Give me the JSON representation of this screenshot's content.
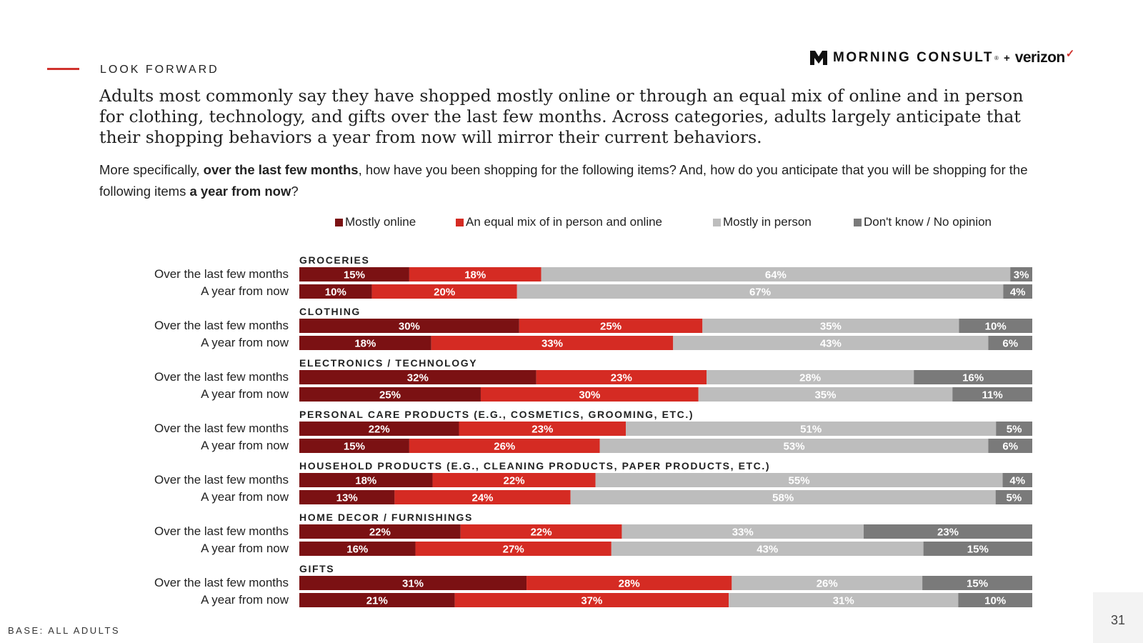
{
  "slide": {
    "section_label": "LOOK FORWARD",
    "brand": "MORNING CONSULT",
    "brand_reg": "®",
    "plus": "+",
    "partner": "verizon",
    "partner_check": "✓",
    "headline": "Adults most commonly say they have shopped mostly online or through an equal mix of online and in person for clothing, technology, and gifts over the last few months. Across categories, adults largely anticipate that their shopping behaviors a year from now will mirror their current behaviors.",
    "question": {
      "p1": "More specifically, ",
      "b1": "over the last few months",
      "p2": ", how have you been shopping for the following items? And, how do you anticipate that you will be shopping for the following items ",
      "b2": "a year from now",
      "p3": "?"
    },
    "base_note": "BASE: ALL ADULTS",
    "page_number": "31"
  },
  "colors": {
    "mostly_online": "#7b1113",
    "equal_mix": "#d52b23",
    "mostly_in_person": "#bdbdbd",
    "dont_know": "#7a7a7a",
    "accent": "#d0322d"
  },
  "chart_data": {
    "type": "bar",
    "orientation": "horizontal",
    "stacked": true,
    "units": "%",
    "legend_position": "top",
    "series": [
      {
        "name": "Mostly online"
      },
      {
        "name": "An equal mix of in person and online"
      },
      {
        "name": "Mostly in person"
      },
      {
        "name": "Don't know / No opinion"
      }
    ],
    "groups": [
      {
        "label": "GROCERIES",
        "rows": [
          {
            "label": "Over the last few months",
            "values": [
              15,
              18,
              64,
              3
            ]
          },
          {
            "label": "A year from now",
            "values": [
              10,
              20,
              67,
              4
            ]
          }
        ]
      },
      {
        "label": "CLOTHING",
        "rows": [
          {
            "label": "Over the last few months",
            "values": [
              30,
              25,
              35,
              10
            ]
          },
          {
            "label": "A year from now",
            "values": [
              18,
              33,
              43,
              6
            ]
          }
        ]
      },
      {
        "label": "ELECTRONICS / TECHNOLOGY",
        "rows": [
          {
            "label": "Over the last few months",
            "values": [
              32,
              23,
              28,
              16
            ]
          },
          {
            "label": "A year from now",
            "values": [
              25,
              30,
              35,
              11
            ]
          }
        ]
      },
      {
        "label": "PERSONAL CARE PRODUCTS (E.G., COSMETICS, GROOMING, ETC.)",
        "rows": [
          {
            "label": "Over the last few months",
            "values": [
              22,
              23,
              51,
              5
            ]
          },
          {
            "label": "A year from now",
            "values": [
              15,
              26,
              53,
              6
            ]
          }
        ]
      },
      {
        "label": "HOUSEHOLD PRODUCTS (E.G., CLEANING PRODUCTS, PAPER PRODUCTS, ETC.)",
        "rows": [
          {
            "label": "Over the last few months",
            "values": [
              18,
              22,
              55,
              4
            ]
          },
          {
            "label": "A year from now",
            "values": [
              13,
              24,
              58,
              5
            ]
          }
        ]
      },
      {
        "label": "HOME DECOR / FURNISHINGS",
        "rows": [
          {
            "label": "Over the last few months",
            "values": [
              22,
              22,
              33,
              23
            ]
          },
          {
            "label": "A year from now",
            "values": [
              16,
              27,
              43,
              15
            ]
          }
        ]
      },
      {
        "label": "GIFTS",
        "rows": [
          {
            "label": "Over the last few months",
            "values": [
              31,
              28,
              26,
              15
            ]
          },
          {
            "label": "A year from now",
            "values": [
              21,
              37,
              31,
              10
            ]
          }
        ]
      }
    ]
  }
}
